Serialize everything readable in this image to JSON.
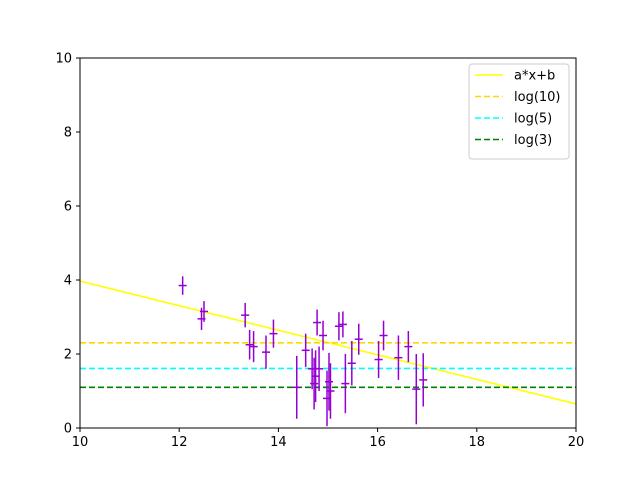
{
  "chart_data": {
    "type": "scatter",
    "title": "",
    "xlabel": "",
    "ylabel": "",
    "xlim": [
      10,
      20
    ],
    "ylim": [
      0,
      10
    ],
    "x_ticks": [
      "10",
      "12",
      "14",
      "16",
      "18",
      "20"
    ],
    "y_ticks": [
      "0",
      "2",
      "4",
      "6",
      "8",
      "10"
    ],
    "grid": false,
    "legend_position": "top-right",
    "error_points": {
      "color": "#9400d3",
      "points": [
        {
          "x": 12.07,
          "y": 3.85,
          "err": 0.25
        },
        {
          "x": 12.45,
          "y": 2.95,
          "err": 0.3
        },
        {
          "x": 12.5,
          "y": 3.15,
          "err": 0.28
        },
        {
          "x": 13.33,
          "y": 3.05,
          "err": 0.33
        },
        {
          "x": 13.42,
          "y": 2.25,
          "err": 0.4
        },
        {
          "x": 13.5,
          "y": 2.2,
          "err": 0.42
        },
        {
          "x": 13.75,
          "y": 2.05,
          "err": 0.45
        },
        {
          "x": 13.9,
          "y": 2.55,
          "err": 0.38
        },
        {
          "x": 14.37,
          "y": 1.1,
          "err": 0.85
        },
        {
          "x": 14.55,
          "y": 2.1,
          "err": 0.45
        },
        {
          "x": 14.68,
          "y": 1.6,
          "err": 0.55
        },
        {
          "x": 14.72,
          "y": 1.2,
          "err": 0.7
        },
        {
          "x": 14.75,
          "y": 1.4,
          "err": 0.7
        },
        {
          "x": 14.78,
          "y": 2.85,
          "err": 0.35
        },
        {
          "x": 14.82,
          "y": 1.6,
          "err": 0.6
        },
        {
          "x": 14.9,
          "y": 2.5,
          "err": 0.4
        },
        {
          "x": 14.98,
          "y": 0.8,
          "err": 0.75
        },
        {
          "x": 15.02,
          "y": 1.25,
          "err": 0.78
        },
        {
          "x": 15.05,
          "y": 1.0,
          "err": 0.75
        },
        {
          "x": 15.22,
          "y": 2.75,
          "err": 0.38
        },
        {
          "x": 15.3,
          "y": 2.8,
          "err": 0.35
        },
        {
          "x": 15.35,
          "y": 1.2,
          "err": 0.8
        },
        {
          "x": 15.48,
          "y": 1.75,
          "err": 0.6
        },
        {
          "x": 15.62,
          "y": 2.4,
          "err": 0.42
        },
        {
          "x": 16.02,
          "y": 1.85,
          "err": 0.5
        },
        {
          "x": 16.12,
          "y": 2.5,
          "err": 0.4
        },
        {
          "x": 16.42,
          "y": 1.9,
          "err": 0.6
        },
        {
          "x": 16.62,
          "y": 2.2,
          "err": 0.42
        },
        {
          "x": 16.78,
          "y": 1.05,
          "err": 0.95
        },
        {
          "x": 16.92,
          "y": 1.3,
          "err": 0.72
        }
      ]
    },
    "lines": [
      {
        "name": "a*x+b",
        "color": "#ffff00",
        "dashed": false,
        "x": [
          10,
          20
        ],
        "y": [
          3.97,
          0.65
        ]
      },
      {
        "name": "log(10)",
        "color": "#ffd700",
        "dashed": true,
        "x": [
          10,
          20
        ],
        "y": [
          2.302585,
          2.302585
        ]
      },
      {
        "name": "log(5)",
        "color": "#00ffff",
        "dashed": true,
        "x": [
          10,
          20
        ],
        "y": [
          1.609438,
          1.609438
        ]
      },
      {
        "name": "log(3)",
        "color": "#008000",
        "dashed": true,
        "x": [
          10,
          20
        ],
        "y": [
          1.098612,
          1.098612
        ]
      }
    ]
  }
}
